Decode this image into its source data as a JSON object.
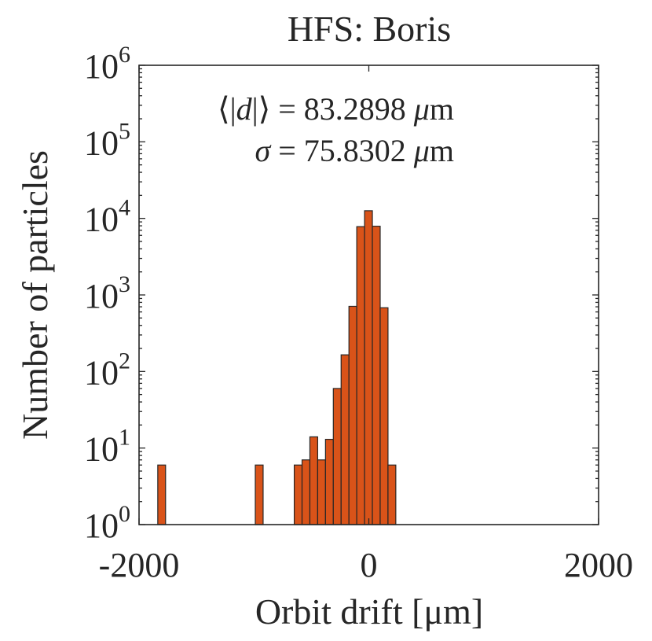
{
  "chart_data": {
    "type": "bar",
    "title": "HFS: Boris",
    "xlabel": "Orbit drift [μm]",
    "ylabel": "Number of particles",
    "xlim": [
      -2000,
      2000
    ],
    "ylim": [
      1,
      1000000
    ],
    "yscale": "log",
    "xticks": [
      {
        "value": -2000,
        "label": "-2000"
      },
      {
        "value": 0,
        "label": "0"
      },
      {
        "value": 2000,
        "label": "2000"
      }
    ],
    "yticks": [
      {
        "exp": 0,
        "base": "10",
        "sup": "0"
      },
      {
        "exp": 1,
        "base": "10",
        "sup": "1"
      },
      {
        "exp": 2,
        "base": "10",
        "sup": "2"
      },
      {
        "exp": 3,
        "base": "10",
        "sup": "3"
      },
      {
        "exp": 4,
        "base": "10",
        "sup": "4"
      },
      {
        "exp": 5,
        "base": "10",
        "sup": "5"
      },
      {
        "exp": 6,
        "base": "10",
        "sup": "6"
      }
    ],
    "bin_width": 68,
    "bars": [
      {
        "center": -1803,
        "value": 6
      },
      {
        "center": -954,
        "value": 6
      },
      {
        "center": -615,
        "value": 6
      },
      {
        "center": -547,
        "value": 7
      },
      {
        "center": -479,
        "value": 14
      },
      {
        "center": -411,
        "value": 7
      },
      {
        "center": -343,
        "value": 13
      },
      {
        "center": -275,
        "value": 60
      },
      {
        "center": -207,
        "value": 165
      },
      {
        "center": -139,
        "value": 710
      },
      {
        "center": -71,
        "value": 7800
      },
      {
        "center": -3,
        "value": 12600
      },
      {
        "center": 65,
        "value": 7900
      },
      {
        "center": 133,
        "value": 680
      },
      {
        "center": 201,
        "value": 6
      }
    ],
    "bar_color": "#d95319",
    "bar_edge_color": "#262626",
    "annotations": [
      {
        "prefix": "⟨|",
        "var": "d",
        "suffix": "|⟩ = 83.2898 ",
        "unit_mu": "μ",
        "unit": "m"
      },
      {
        "prefix": "",
        "var": "σ",
        "suffix": " = 75.8302 ",
        "unit_mu": "μ",
        "unit": "m"
      }
    ],
    "grid": false
  }
}
